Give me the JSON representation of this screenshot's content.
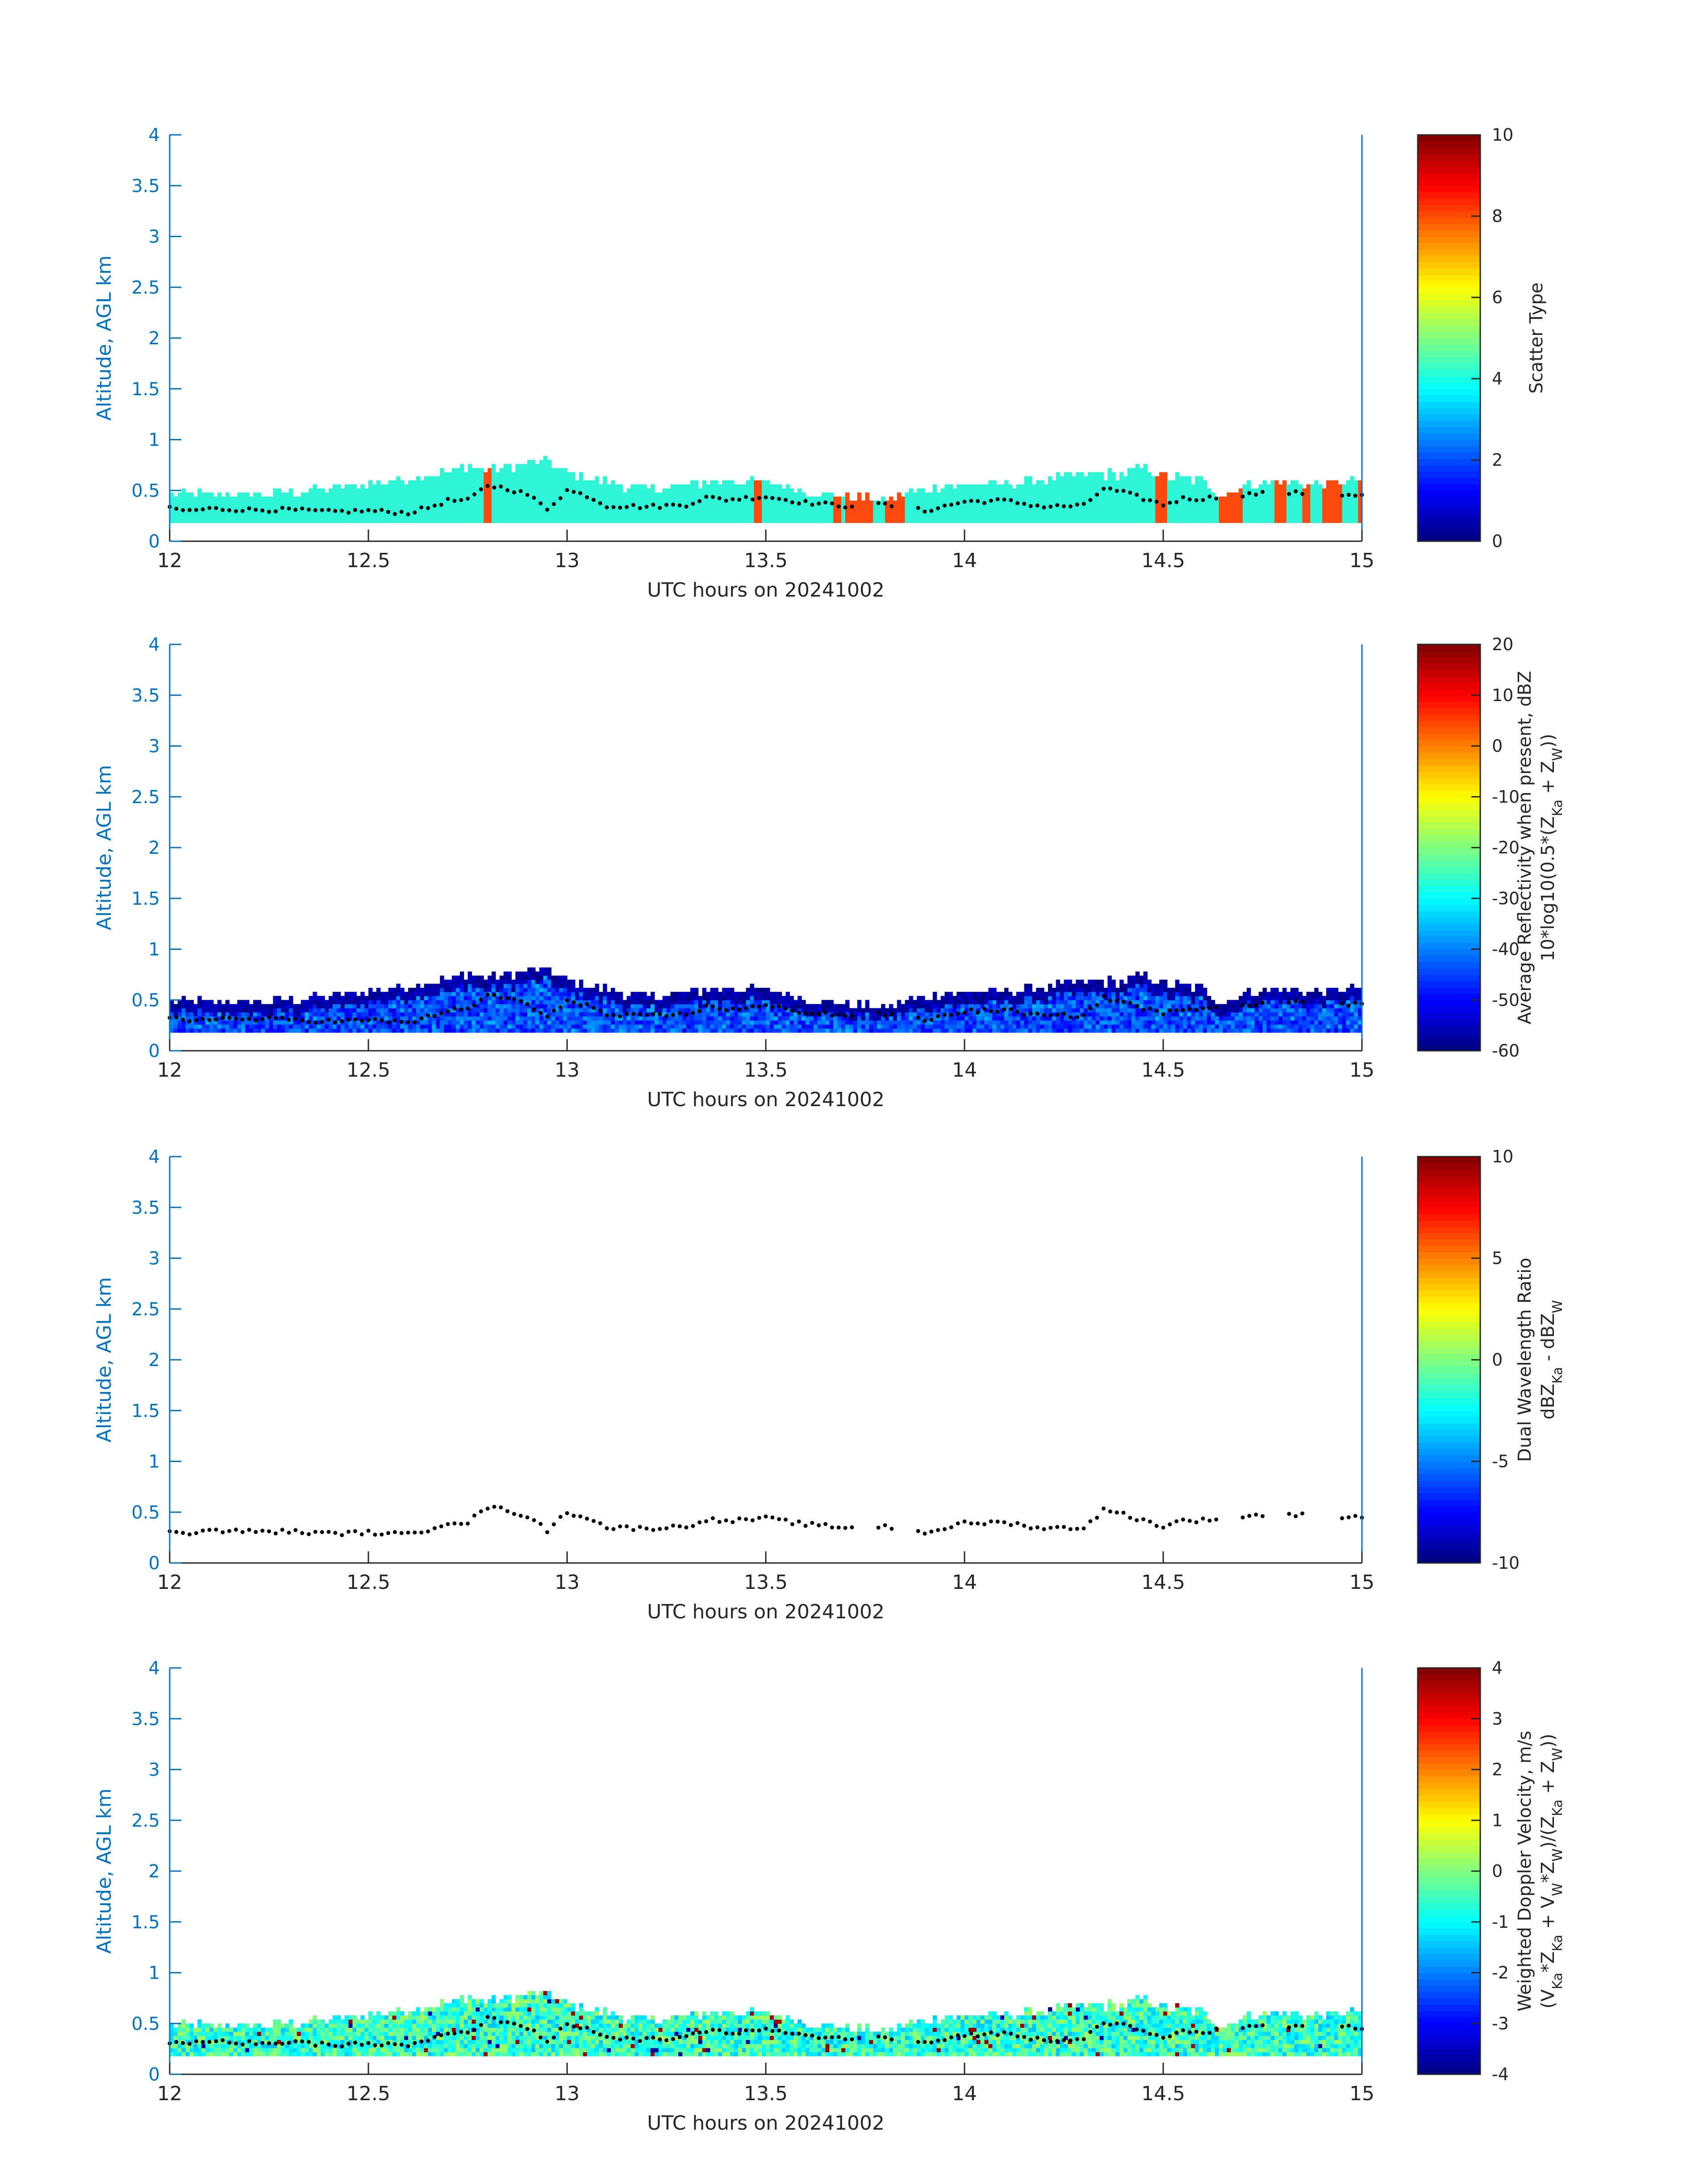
{
  "figure": {
    "date_label": "UTC hours on 20241002"
  },
  "colors": {
    "axis": "#0072BD",
    "text": "#262626",
    "cloud_base": "#000000",
    "scatter_fill": "#2EF5D6",
    "scatter_alt": "#FF4A0F"
  },
  "chart_data": [
    {
      "type": "heatmap",
      "panel": "scatter-type",
      "title": "",
      "xlabel": "UTC hours on 20241002",
      "ylabel": "Altitude, AGL km",
      "xlim": [
        12,
        15
      ],
      "ylim": [
        0,
        4
      ],
      "xticks": [
        "12",
        "12.5",
        "13",
        "13.5",
        "14",
        "14.5",
        "15"
      ],
      "yticks": [
        "0",
        "0.5",
        "1",
        "1.5",
        "2",
        "2.5",
        "3",
        "3.5",
        "4"
      ],
      "colorbar": {
        "label": [
          "Scatter Type"
        ],
        "clim": [
          0,
          10
        ],
        "ticks": [
          "0",
          "2",
          "4",
          "6",
          "8",
          "10"
        ]
      },
      "field": "scatter",
      "background_value": 4,
      "alt_value_approx": 8.5,
      "alt_time_ranges": [
        [
          12.79,
          12.81
        ],
        [
          13.47,
          13.49
        ],
        [
          13.67,
          13.69
        ],
        [
          13.7,
          13.77
        ],
        [
          13.8,
          13.85
        ],
        [
          14.48,
          14.51
        ],
        [
          14.64,
          14.7
        ],
        [
          14.78,
          14.81
        ],
        [
          14.85,
          14.87
        ],
        [
          14.9,
          14.95
        ],
        [
          14.99,
          15.0
        ]
      ],
      "cloud_base": true
    },
    {
      "type": "heatmap",
      "panel": "reflectivity",
      "title": "",
      "xlabel": "UTC hours on 20241002",
      "ylabel": "Altitude, AGL km",
      "xlim": [
        12,
        15
      ],
      "ylim": [
        0,
        4
      ],
      "xticks": [
        "12",
        "12.5",
        "13",
        "13.5",
        "14",
        "14.5",
        "15"
      ],
      "yticks": [
        "0",
        "0.5",
        "1",
        "1.5",
        "2",
        "2.5",
        "3",
        "3.5",
        "4"
      ],
      "colorbar": {
        "label": [
          "Average Reflectivity when present, dBZ",
          "10*log10(0.5*(Z",
          "Ka",
          " + Z",
          "W",
          "))"
        ],
        "clim": [
          -60,
          20
        ],
        "ticks": [
          "-60",
          "-50",
          "-40",
          "-30",
          "-20",
          "-10",
          "0",
          "10",
          "20"
        ]
      },
      "field": "reflectivity",
      "value_range_approx": [
        -55,
        -35
      ],
      "cloud_base": true
    },
    {
      "type": "scatter",
      "panel": "dual-wavelength-ratio",
      "title": "",
      "xlabel": "UTC hours on 20241002",
      "ylabel": "Altitude, AGL km",
      "xlim": [
        12,
        15
      ],
      "ylim": [
        0,
        4
      ],
      "xticks": [
        "12",
        "12.5",
        "13",
        "13.5",
        "14",
        "14.5",
        "15"
      ],
      "yticks": [
        "0",
        "0.5",
        "1",
        "1.5",
        "2",
        "2.5",
        "3",
        "3.5",
        "4"
      ],
      "colorbar": {
        "label": [
          "Dual Wavelength Ratio",
          "dBZ",
          "Ka",
          " - dBZ",
          "W"
        ],
        "clim": [
          -10,
          10
        ],
        "ticks": [
          "-10",
          "-5",
          "0",
          "5",
          "10"
        ]
      },
      "field": "none",
      "cloud_base": true
    },
    {
      "type": "heatmap",
      "panel": "doppler-velocity",
      "title": "",
      "xlabel": "UTC hours on 20241002",
      "ylabel": "Altitude, AGL km",
      "xlim": [
        12,
        15
      ],
      "ylim": [
        0,
        4
      ],
      "xticks": [
        "12",
        "12.5",
        "13",
        "13.5",
        "14",
        "14.5",
        "15"
      ],
      "yticks": [
        "0",
        "0.5",
        "1",
        "1.5",
        "2",
        "2.5",
        "3",
        "3.5",
        "4"
      ],
      "colorbar": {
        "label": [
          "Weighted Doppler Velocity, m/s",
          "(V",
          "Ka",
          "*Z",
          "Ka",
          " + V",
          "W",
          "*Z",
          "W",
          ")/(Z",
          "Ka",
          " + Z",
          "W",
          "))"
        ],
        "clim": [
          -4,
          4
        ],
        "ticks": [
          "-4",
          "-3",
          "-2",
          "-1",
          "0",
          "1",
          "2",
          "3",
          "4"
        ]
      },
      "field": "velocity",
      "value_range_approx": [
        -1.5,
        1.0
      ],
      "cloud_base": true
    }
  ],
  "echo_profile": {
    "description_units": "UTC hours vs km AGL",
    "bottom_km": 0.18,
    "time": [
      12.0,
      12.1,
      12.2,
      12.3,
      12.4,
      12.5,
      12.6,
      12.7,
      12.75,
      12.8,
      12.9,
      12.95,
      13.0,
      13.1,
      13.2,
      13.3,
      13.4,
      13.5,
      13.6,
      13.7,
      13.8,
      13.9,
      14.0,
      14.1,
      14.2,
      14.3,
      14.4,
      14.45,
      14.5,
      14.6,
      14.65,
      14.7,
      14.8,
      14.9,
      15.0
    ],
    "top_km": [
      0.48,
      0.46,
      0.46,
      0.48,
      0.52,
      0.56,
      0.62,
      0.68,
      0.74,
      0.7,
      0.76,
      0.8,
      0.66,
      0.58,
      0.5,
      0.56,
      0.6,
      0.58,
      0.5,
      0.44,
      0.4,
      0.52,
      0.56,
      0.56,
      0.6,
      0.66,
      0.66,
      0.74,
      0.64,
      0.6,
      0.44,
      0.56,
      0.58,
      0.56,
      0.6
    ]
  },
  "cloud_base": {
    "time": [
      12.0,
      12.05,
      12.1,
      12.2,
      12.3,
      12.4,
      12.5,
      12.6,
      12.65,
      12.7,
      12.75,
      12.8,
      12.85,
      12.9,
      12.95,
      13.0,
      13.05,
      13.1,
      13.2,
      13.3,
      13.35,
      13.4,
      13.5,
      13.6,
      13.7,
      13.8,
      13.9,
      14.0,
      14.1,
      14.2,
      14.3,
      14.35,
      14.4,
      14.5,
      14.55,
      14.6,
      14.7,
      14.8,
      14.9,
      15.0
    ],
    "alt_km": [
      0.32,
      0.3,
      0.32,
      0.31,
      0.31,
      0.29,
      0.3,
      0.28,
      0.33,
      0.4,
      0.4,
      0.55,
      0.52,
      0.46,
      0.32,
      0.5,
      0.45,
      0.35,
      0.34,
      0.36,
      0.43,
      0.41,
      0.44,
      0.38,
      0.35,
      0.36,
      0.3,
      0.39,
      0.4,
      0.34,
      0.35,
      0.52,
      0.48,
      0.36,
      0.42,
      0.42,
      0.46,
      0.48,
      0.46,
      0.46
    ],
    "gaps": [
      [
        13.72,
        13.77
      ],
      [
        13.82,
        13.87
      ],
      [
        14.64,
        14.69
      ],
      [
        14.76,
        14.81
      ],
      [
        14.86,
        14.94
      ]
    ]
  }
}
